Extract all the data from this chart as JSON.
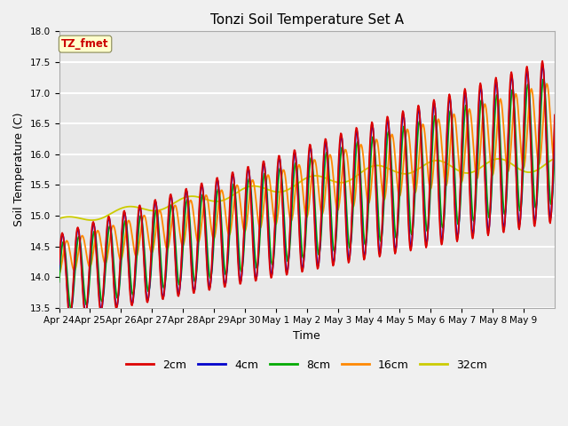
{
  "title": "Tonzi Soil Temperature Set A",
  "xlabel": "Time",
  "ylabel": "Soil Temperature (C)",
  "ylim": [
    13.5,
    18.0
  ],
  "x_labels": [
    "Apr 24",
    "Apr 25",
    "Apr 26",
    "Apr 27",
    "Apr 28",
    "Apr 29",
    "Apr 30",
    "May 1",
    "May 2",
    "May 3",
    "May 4",
    "May 5",
    "May 6",
    "May 7",
    "May 8",
    "May 9"
  ],
  "series_labels": [
    "2cm",
    "4cm",
    "8cm",
    "16cm",
    "32cm"
  ],
  "series_colors": [
    "#dd0000",
    "#0000cc",
    "#00aa00",
    "#ff8800",
    "#cccc00"
  ],
  "annotation_text": "TZ_fmet",
  "annotation_color": "#cc0000",
  "annotation_bg": "#ffffcc",
  "plot_bg": "#e8e8e8",
  "fig_bg": "#f0f0f0",
  "title_fontsize": 11,
  "axis_label_fontsize": 9,
  "tick_fontsize": 7.5,
  "legend_fontsize": 9,
  "line_width": 1.3
}
